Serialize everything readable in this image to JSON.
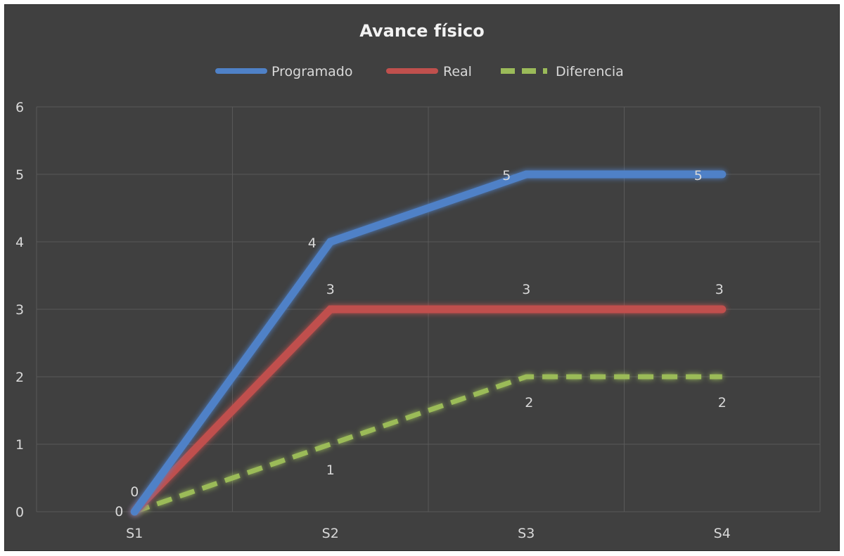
{
  "chart_data": {
    "type": "line",
    "title": "Avance físico",
    "categories": [
      "S1",
      "S2",
      "S3",
      "S4"
    ],
    "ylim": [
      0,
      6
    ],
    "yticks": [
      "0",
      "1",
      "2",
      "3",
      "4",
      "5",
      "6"
    ],
    "grid": true,
    "legend_position": "top",
    "series": [
      {
        "name": "Programado",
        "values": [
          0,
          4,
          5,
          5
        ],
        "color": "#4f81c7",
        "dashed": false,
        "labels": [
          "0",
          "4",
          "5",
          "5"
        ]
      },
      {
        "name": "Real",
        "values": [
          0,
          3,
          3,
          3
        ],
        "color": "#c0504d",
        "dashed": false,
        "labels": [
          "0",
          "3",
          "3",
          "3"
        ]
      },
      {
        "name": "Diferencia",
        "values": [
          0,
          1,
          2,
          2
        ],
        "color": "#9bbb59",
        "dashed": true,
        "labels": [
          "",
          "1",
          "2",
          "2"
        ]
      }
    ]
  }
}
